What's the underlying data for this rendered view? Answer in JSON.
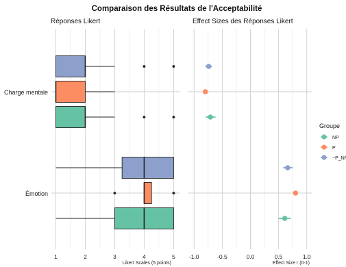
{
  "figure": {
    "title": "Comparaison des Résultats de l'Acceptabilité"
  },
  "legend": {
    "title": "Groupe",
    "position": "right",
    "items": [
      {
        "label": "NP",
        "color": "#66C2A5"
      },
      {
        "label": "P",
        "color": "#FC8D62"
      },
      {
        "label": "~P_NP",
        "color": "#8DA0CB"
      }
    ]
  },
  "chart_data": [
    {
      "type": "boxplot",
      "orientation": "horizontal",
      "title": "Réponses Likert",
      "xlabel": "Likert Scales (5 points)",
      "xlim": [
        0.85,
        5.2
      ],
      "x_ticks": [
        1,
        2,
        3,
        4,
        5
      ],
      "grid": true,
      "categories": [
        "Charge mentale",
        "Émotion"
      ],
      "series": [
        {
          "name": "~P_NP",
          "color": "#8DA0CB",
          "boxes": [
            {
              "category": "Charge mentale",
              "whisker_low": 1,
              "q1": 1,
              "median": 2,
              "q3": 2,
              "whisker_high": 3,
              "outliers": [
                4,
                5
              ]
            },
            {
              "category": "Émotion",
              "whisker_low": 1,
              "q1": 3.25,
              "median": 4,
              "q3": 5,
              "whisker_high": 5,
              "outliers": []
            }
          ]
        },
        {
          "name": "P",
          "color": "#FC8D62",
          "boxes": [
            {
              "category": "Charge mentale",
              "whisker_low": 1,
              "q1": 1,
              "median": 1,
              "q3": 2,
              "whisker_high": 3,
              "outliers": []
            },
            {
              "category": "Émotion",
              "whisker_low": 4,
              "q1": 4,
              "median": 4,
              "q3": 4.25,
              "whisker_high": 4.25,
              "outliers": [
                3,
                5
              ]
            }
          ]
        },
        {
          "name": "NP",
          "color": "#66C2A5",
          "boxes": [
            {
              "category": "Charge mentale",
              "whisker_low": 1,
              "q1": 1,
              "median": 2,
              "q3": 2,
              "whisker_high": 3,
              "outliers": [
                4,
                5
              ]
            },
            {
              "category": "Émotion",
              "whisker_low": 1,
              "q1": 3,
              "median": 4,
              "q3": 5,
              "whisker_high": 5,
              "outliers": []
            }
          ]
        }
      ]
    },
    {
      "type": "pointrange",
      "orientation": "horizontal",
      "title": "Effect Sizes des Réponses Likert",
      "xlabel": "Effect Size r (0-1)",
      "xlim": [
        -1.1,
        1.1
      ],
      "x_ticks": [
        -1.0,
        -0.5,
        0.0,
        0.5,
        1.0
      ],
      "x_tick_labels": [
        "-1.0",
        "-0.5",
        "0.0",
        "0.5",
        "1.0"
      ],
      "grid": true,
      "categories": [
        "Charge mentale",
        "Émotion"
      ],
      "series": [
        {
          "name": "~P_NP",
          "color": "#8DA0CB",
          "points": [
            {
              "category": "Charge mentale",
              "value": -0.74,
              "low": -0.8,
              "high": -0.68
            },
            {
              "category": "Émotion",
              "value": 0.66,
              "low": 0.58,
              "high": 0.75
            }
          ]
        },
        {
          "name": "P",
          "color": "#FC8D62",
          "points": [
            {
              "category": "Charge mentale",
              "value": -0.8,
              "low": -0.84,
              "high": -0.76
            },
            {
              "category": "Émotion",
              "value": 0.8,
              "low": 0.76,
              "high": 0.84
            }
          ]
        },
        {
          "name": "NP",
          "color": "#66C2A5",
          "points": [
            {
              "category": "Charge mentale",
              "value": -0.71,
              "low": -0.79,
              "high": -0.62
            },
            {
              "category": "Émotion",
              "value": 0.61,
              "low": 0.5,
              "high": 0.72
            }
          ]
        }
      ]
    }
  ]
}
